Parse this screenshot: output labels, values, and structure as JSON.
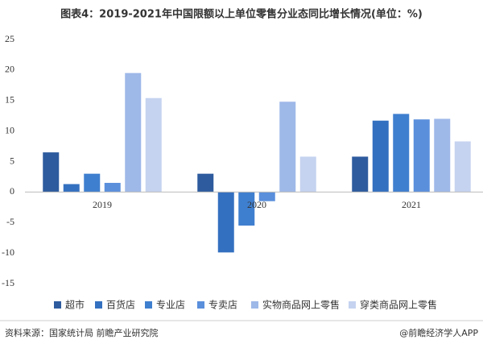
{
  "chart_data": {
    "type": "bar",
    "title": "图表4：2019-2021年中国限额以上单位零售分业态同比增长情况(单位：%)",
    "categories": [
      "2019",
      "2020",
      "2021"
    ],
    "series": [
      {
        "name": "超市",
        "color": "#2e5b9e",
        "values": [
          6.5,
          3.0,
          5.8
        ]
      },
      {
        "name": "百货店",
        "color": "#3470c0",
        "values": [
          1.3,
          -9.9,
          11.7
        ]
      },
      {
        "name": "专业店",
        "color": "#3f7fcf",
        "values": [
          3.0,
          -5.5,
          12.8
        ]
      },
      {
        "name": "专卖店",
        "color": "#5a8fdc",
        "values": [
          1.5,
          -1.5,
          11.9
        ]
      },
      {
        "name": "实物商品网上零售",
        "color": "#9eb8e8",
        "values": [
          19.5,
          14.8,
          12.0
        ]
      },
      {
        "name": "穿类商品网上零售",
        "color": "#c5d3f0",
        "values": [
          15.4,
          5.8,
          8.3
        ]
      }
    ],
    "ylim": [
      -15,
      25
    ],
    "yticks": [
      -15,
      -10,
      -5,
      0,
      5,
      10,
      15,
      20,
      25
    ],
    "grid": false
  },
  "footer": {
    "source": "资料来源：国家统计局 前瞻产业研究院",
    "brand": "@前瞻经济学人APP"
  }
}
